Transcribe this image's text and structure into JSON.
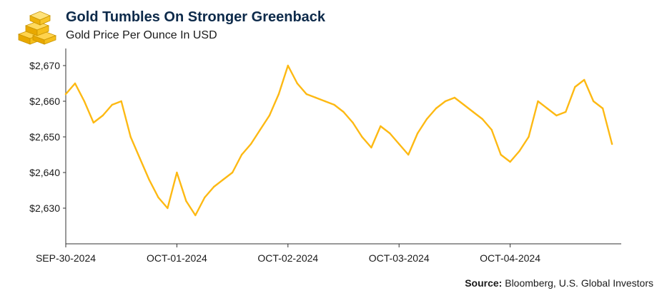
{
  "header": {
    "title": "Gold Tumbles On Stronger Greenback",
    "subtitle": "Gold Price Per Ounce In USD",
    "logo_icon": "gold-bars-icon"
  },
  "footer": {
    "source_label": "Source:",
    "source_text": " Bloomberg, U.S. Global Investors"
  },
  "colors": {
    "line": "#FDB913",
    "title": "#0d2a4a",
    "axis": "#333333"
  },
  "chart_data": {
    "type": "line",
    "title": "Gold Tumbles On Stronger Greenback",
    "subtitle": "Gold Price Per Ounce In USD",
    "xlabel": "",
    "ylabel": "",
    "ylim": [
      2620,
      2674
    ],
    "yticks": [
      2630,
      2640,
      2650,
      2660,
      2670
    ],
    "ytick_labels": [
      "$2,630",
      "$2,640",
      "$2,650",
      "$2,660",
      "$2,670"
    ],
    "xticks": [
      "SEP-30-2024",
      "OCT-01-2024",
      "OCT-02-2024",
      "OCT-03-2024",
      "OCT-04-2024"
    ],
    "grid": false,
    "legend": "none",
    "series": [
      {
        "name": "",
        "color": "#FDB913",
        "x": [
          "2024-09-30 00:00",
          "2024-09-30 02:00",
          "2024-09-30 04:00",
          "2024-09-30 06:00",
          "2024-09-30 08:00",
          "2024-09-30 10:00",
          "2024-09-30 12:00",
          "2024-09-30 14:00",
          "2024-09-30 16:00",
          "2024-09-30 18:00",
          "2024-09-30 20:00",
          "2024-09-30 22:00",
          "2024-10-01 00:00",
          "2024-10-01 02:00",
          "2024-10-01 04:00",
          "2024-10-01 06:00",
          "2024-10-01 08:00",
          "2024-10-01 10:00",
          "2024-10-01 12:00",
          "2024-10-01 14:00",
          "2024-10-01 16:00",
          "2024-10-01 18:00",
          "2024-10-01 20:00",
          "2024-10-01 22:00",
          "2024-10-02 00:00",
          "2024-10-02 02:00",
          "2024-10-02 04:00",
          "2024-10-02 06:00",
          "2024-10-02 08:00",
          "2024-10-02 10:00",
          "2024-10-02 12:00",
          "2024-10-02 14:00",
          "2024-10-02 16:00",
          "2024-10-02 18:00",
          "2024-10-02 20:00",
          "2024-10-02 22:00",
          "2024-10-03 00:00",
          "2024-10-03 02:00",
          "2024-10-03 04:00",
          "2024-10-03 06:00",
          "2024-10-03 08:00",
          "2024-10-03 10:00",
          "2024-10-03 12:00",
          "2024-10-03 14:00",
          "2024-10-03 16:00",
          "2024-10-03 18:00",
          "2024-10-03 20:00",
          "2024-10-03 22:00",
          "2024-10-04 00:00",
          "2024-10-04 02:00",
          "2024-10-04 04:00",
          "2024-10-04 06:00",
          "2024-10-04 08:00",
          "2024-10-04 10:00",
          "2024-10-04 12:00",
          "2024-10-04 14:00",
          "2024-10-04 16:00",
          "2024-10-04 18:00",
          "2024-10-04 20:00",
          "2024-10-04 22:00"
        ],
        "y": [
          2662,
          2665,
          2660,
          2654,
          2656,
          2659,
          2660,
          2650,
          2644,
          2638,
          2633,
          2630,
          2640,
          2632,
          2628,
          2633,
          2636,
          2638,
          2640,
          2645,
          2648,
          2652,
          2656,
          2662,
          2670,
          2665,
          2662,
          2661,
          2660,
          2659,
          2657,
          2654,
          2650,
          2647,
          2653,
          2651,
          2648,
          2645,
          2651,
          2655,
          2658,
          2660,
          2661,
          2659,
          2657,
          2655,
          2652,
          2645,
          2643,
          2646,
          2650,
          2660,
          2658,
          2656,
          2657,
          2664,
          2666,
          2660,
          2658,
          2648
        ]
      }
    ]
  }
}
